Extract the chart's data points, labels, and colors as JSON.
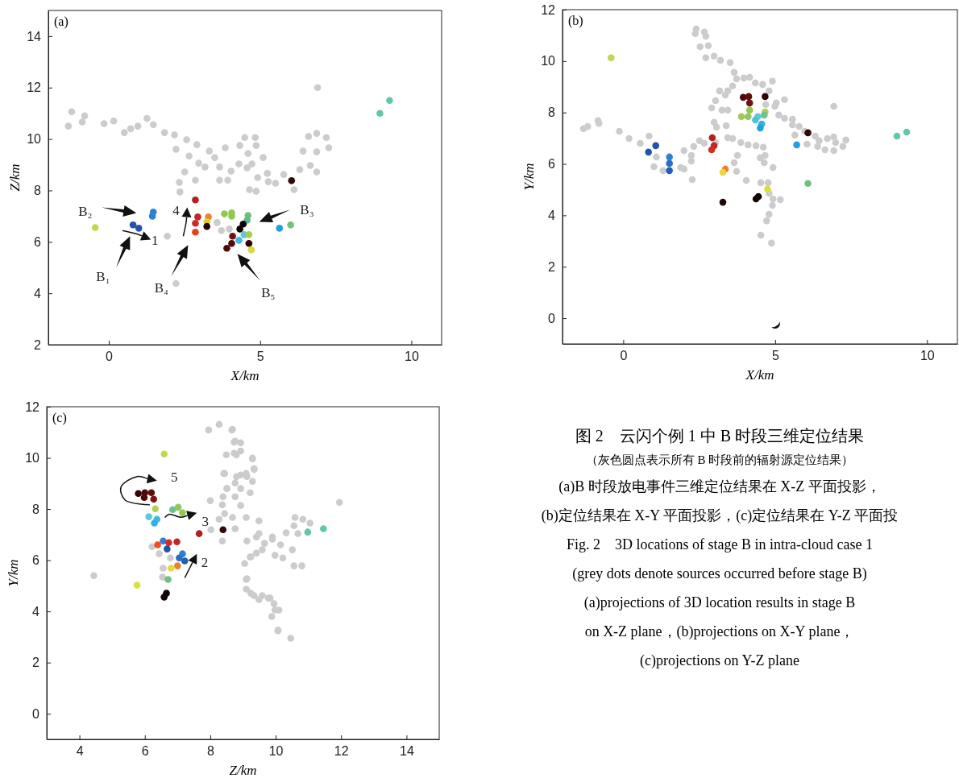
{
  "chart_data": [
    {
      "type": "scatter",
      "title": "(a)",
      "xlabel": "X/km",
      "ylabel": "Z/km",
      "xlim": [
        -2,
        11
      ],
      "ylim": [
        2,
        15
      ],
      "xticks": [
        0,
        5,
        10
      ],
      "yticks": [
        2,
        4,
        6,
        8,
        10,
        12,
        14
      ],
      "marker": "circle",
      "annotations": [
        "B₂",
        "B₁",
        "B₄",
        "B₅",
        "B₃",
        "1",
        "4"
      ],
      "series": [
        {
          "type": "scatter",
          "color": "#cccccc",
          "x": [
            -1.34,
            -1.23,
            -0.88,
            -0.8,
            -0.16,
            0.16,
            0.51,
            0.72,
            0.96,
            1.26,
            1.47,
            1.84,
            2.17,
            2.22,
            2.57,
            2.91,
            2.65,
            2.51,
            2.33,
            2.35,
            2.86,
            2.97,
            3.32,
            3.5,
            3.18,
            3.66,
            3.85,
            4.04,
            3.66,
            3.93,
            4.3,
            4.33,
            4.49,
            4.6,
            4.84,
            4.87,
            4.73,
            4.57,
            5.1,
            4.92,
            5.24,
            5.27,
            4.65,
            4.87,
            5.51,
            5.78,
            6.12,
            6.31,
            6.42,
            6.6,
            6.66,
            6.87,
            6.87,
            6.87,
            7.19,
            7.27,
            6.9,
            3.58,
            3.72,
            3.98,
            1.93,
            2.22
          ],
          "values": [
            10.5,
            11.06,
            10.66,
            10.9,
            10.6,
            10.7,
            10.25,
            10.4,
            10.5,
            10.8,
            10.56,
            10.25,
            10.16,
            9.6,
            9.97,
            9.78,
            9.34,
            8.72,
            8.31,
            7.94,
            8.4,
            9.06,
            9.53,
            9.28,
            8.91,
            8.91,
            9.66,
            8.75,
            8.4,
            8.4,
            9.03,
            9.75,
            10.06,
            9.44,
            10.06,
            9.75,
            9.03,
            8.88,
            9.28,
            8.5,
            8.66,
            8.34,
            8.03,
            7.97,
            8.28,
            8.62,
            8.03,
            8.81,
            9.53,
            10.1,
            8.97,
            10.22,
            9.5,
            8.72,
            10.06,
            9.66,
            12.0,
            6.75,
            6.44,
            6.5,
            6.22,
            4.38
          ]
        },
        {
          "type": "scatter",
          "x": [
            -0.45,
            0.8,
            0.99,
            1.47,
            1.44,
            2.86,
            2.94,
            2.86,
            2.86,
            3.29,
            3.24,
            3.24,
            3.82,
            4.06,
            4.06,
            4.6,
            4.57,
            4.44,
            4.33,
            4.47,
            4.3,
            4.63,
            4.09,
            4.06,
            3.9,
            4.63,
            4.71,
            5.64,
            6.01,
            6.04,
            8.96,
            9.28
          ],
          "values": [
            6.56,
            6.66,
            6.53,
            7.16,
            7.0,
            7.63,
            6.97,
            6.72,
            6.38,
            6.97,
            6.78,
            6.6,
            7.09,
            7.0,
            7.13,
            7.03,
            6.84,
            6.69,
            6.5,
            6.28,
            6.06,
            6.28,
            6.22,
            5.94,
            5.75,
            5.94,
            5.69,
            6.53,
            6.66,
            8.38,
            11.0,
            11.5
          ],
          "colors": [
            "#c0d850",
            "#2155a8",
            "#2155a8",
            "#2e80d0",
            "#2e80d0",
            "#b22020",
            "#c82424",
            "#d02828",
            "#e84020",
            "#f08030",
            "#e0d030",
            "#200808",
            "#90c850",
            "#90c850",
            "#90c850",
            "#70c070",
            "#60b890",
            "#100404",
            "#100404",
            "#60c8d8",
            "#40b8e0",
            "#a8d050",
            "#701010",
            "#500808",
            "#500808",
            "#300404",
            "#d8d840",
            "#20a0e0",
            "#70c080",
            "#300808",
            "#60c8a8",
            "#60c8a8"
          ]
        }
      ]
    },
    {
      "type": "scatter",
      "title": "(b)",
      "xlabel": "X/km",
      "ylabel": "Y/km",
      "xlim": [
        -2,
        11
      ],
      "ylim": [
        -1,
        12
      ],
      "xticks": [
        0,
        5,
        10
      ],
      "yticks": [
        0,
        2,
        4,
        6,
        8,
        10,
        12
      ],
      "marker": "circle",
      "series": [
        {
          "type": "scatter",
          "color": "#cccccc",
          "x": [
            2.4,
            2.37,
            2.67,
            2.72,
            2.53,
            2.8,
            2.72,
            2.99,
            3.2,
            3.52,
            3.65,
            3.73,
            3.97,
            4.16,
            4.35,
            4.59,
            4.91,
            4.8,
            3.6,
            3.44,
            3.17,
            3.36,
            3.04,
            2.91,
            3.25,
            3.44,
            4.69,
            5.04,
            5.31,
            4.99,
            6.93,
            5.12,
            5.31,
            5.57,
            5.57,
            5.79,
            5.97,
            6.32,
            6.45,
            6.72,
            6.93,
            6.99,
            7.33,
            7.23,
            6.93,
            6.64,
            6.4,
            6.05,
            5.65,
            -1.31,
            -1.17,
            -0.83,
            -0.8,
            -0.13,
            0.19,
            0.56,
            0.85,
            1.09,
            1.01,
            1.31,
            1.89,
            2.0,
            2.27,
            2.24,
            2.24,
            2.0,
            2.32,
            2.51,
            2.67,
            3.04,
            2.99,
            3.07,
            3.39,
            3.44,
            3.6,
            3.87,
            4.11,
            4.37,
            4.61,
            3.76,
            3.65,
            3.73,
            4.05,
            4.51,
            4.67,
            4.64,
            4.93,
            4.53,
            4.77,
            4.8,
            4.93,
            5.17,
            4.91,
            4.8,
            4.72,
            4.53,
            4.88
          ],
          "values": [
            11.25,
            11.07,
            11.13,
            10.97,
            10.56,
            10.6,
            10.13,
            10.19,
            10.03,
            9.94,
            9.56,
            9.31,
            9.34,
            9.37,
            9.15,
            9.09,
            9.22,
            8.84,
            9.03,
            8.84,
            8.84,
            8.68,
            8.46,
            8.18,
            8.09,
            8.09,
            8.31,
            8.37,
            8.5,
            8.24,
            8.24,
            7.9,
            7.77,
            7.74,
            7.52,
            7.46,
            7.27,
            7.08,
            6.9,
            6.99,
            7.05,
            6.83,
            6.93,
            6.68,
            6.52,
            6.55,
            6.68,
            6.77,
            7.12,
            7.37,
            7.46,
            7.68,
            7.58,
            7.27,
            6.99,
            6.8,
            7.08,
            6.27,
            5.89,
            5.74,
            5.86,
            5.8,
            5.39,
            6.11,
            6.33,
            6.52,
            6.68,
            6.9,
            6.8,
            6.83,
            7.62,
            7.43,
            7.49,
            7.02,
            6.99,
            6.83,
            6.74,
            6.71,
            6.65,
            6.33,
            6.05,
            5.71,
            5.36,
            6.24,
            6.33,
            6.05,
            5.86,
            5.27,
            5.27,
            4.86,
            4.64,
            4.61,
            4.39,
            4.04,
            3.79,
            3.23,
            2.92
          ]
        },
        {
          "type": "scatter",
          "x": [
            -0.4,
            3.95,
            4.13,
            4.16,
            4.67,
            4.16,
            3.89,
            4.11,
            4.67,
            4.64,
            4.43,
            4.35,
            4.56,
            4.51,
            6.08,
            9.01,
            9.33,
            5.71,
            1.07,
            0.83,
            1.52,
            1.52,
            1.52,
            2.93,
            2.99,
            2.91,
            3.36,
            3.28,
            4.75,
            6.08,
            4.45,
            4.37,
            3.28
          ],
          "values": [
            10.13,
            8.59,
            8.62,
            8.37,
            8.62,
            8.09,
            7.84,
            7.84,
            8.02,
            7.9,
            7.84,
            7.71,
            7.55,
            7.4,
            7.21,
            7.08,
            7.24,
            6.74,
            6.71,
            6.46,
            6.27,
            6.02,
            5.74,
            7.02,
            6.71,
            6.55,
            5.8,
            5.67,
            5.02,
            5.24,
            4.73,
            4.64,
            4.51
          ],
          "colors": [
            "#c0d850",
            "#500808",
            "#600c0c",
            "#701010",
            "#300404",
            "#90c850",
            "#a0c850",
            "#90c860",
            "#b0d050",
            "#70c090",
            "#60c8d8",
            "#50c0e0",
            "#30b0e8",
            "#20a0e0",
            "#300808",
            "#60c8a8",
            "#60c8a8",
            "#20a0e0",
            "#2155a8",
            "#2155a8",
            "#2e80d0",
            "#2870c0",
            "#2060b0",
            "#b02020",
            "#c02828",
            "#d03020",
            "#f08030",
            "#e8d840",
            "#d8e040",
            "#70c080",
            "#100404",
            "#100404",
            "#200808"
          ]
        }
      ]
    },
    {
      "type": "scatter",
      "title": "(c)",
      "xlabel": "Z/km",
      "ylabel": "Y/km",
      "xlim": [
        3,
        15
      ],
      "ylim": [
        -1,
        12
      ],
      "xticks": [
        4,
        6,
        8,
        10,
        12,
        14
      ],
      "yticks": [
        0,
        2,
        4,
        6,
        8,
        10,
        12
      ],
      "marker": "circle",
      "annotations": [
        "5",
        "3",
        "2"
      ],
      "series": [
        {
          "type": "scatter",
          "color": "#cccccc",
          "x": [
            7.95,
            8.27,
            8.66,
            8.76,
            8.73,
            8.93,
            9.29,
            9.34,
            8.93,
            9.12,
            8.76,
            8.44,
            8.51,
            8.39,
            8.76,
            8.0,
            8.37,
            8.93,
            8.44,
            8.27,
            9.1,
            9.49,
            8.76,
            8.37,
            9.12,
            9.41,
            9.9,
            10.15,
            9.59,
            9.24,
            9.05,
            9.1,
            9.24,
            9.59,
            9.83,
            9.98,
            10.07,
            6.22,
            6.44,
            6.78,
            6.56,
            6.54,
            4.44,
            8.68,
            8.73,
            8.93,
            8.49,
            8.8,
            9.29,
            9.34,
            8.41,
            8.8,
            9.1,
            9.29,
            8.51,
            8.93,
            9.22,
            11.95,
            10.59,
            10.83,
            11.05,
            10.56,
            10.68,
            10.32,
            9.49,
            9.9,
            9.66,
            10.51,
            10.22,
            9.98,
            9.41,
            9.22,
            10.56,
            10.8,
            9.12,
            9.1,
            9.34,
            9.49,
            9.78,
            9.95,
            10.1,
            9.88,
            10.07,
            10.46,
            8.68,
            8.02
          ],
          "values": [
            11.09,
            11.31,
            11.09,
            10.65,
            10.18,
            10.27,
            9.99,
            9.58,
            9.33,
            9.27,
            9.02,
            9.39,
            8.8,
            8.48,
            8.48,
            8.33,
            8.17,
            8.14,
            7.82,
            7.6,
            7.67,
            7.54,
            7.23,
            6.75,
            6.75,
            6.91,
            6.91,
            6.6,
            6.41,
            6.13,
            5.87,
            5.25,
            4.71,
            4.62,
            4.52,
            4.05,
            3.27,
            6.53,
            6.25,
            6.09,
            5.69,
            5.34,
            5.4,
            11.12,
            10.62,
            10.59,
            10.12,
            10.12,
            9.96,
            9.55,
            9.39,
            9.27,
            9.39,
            9.08,
            8.8,
            8.8,
            8.64,
            8.26,
            7.67,
            7.6,
            7.45,
            7.35,
            7.04,
            7.07,
            7.04,
            6.82,
            6.66,
            6.41,
            6.09,
            6.19,
            6.28,
            6.13,
            5.78,
            5.78,
            5.28,
            4.87,
            4.62,
            4.46,
            4.52,
            4.3,
            4.05,
            3.8,
            3.24,
            2.95,
            7.67,
            7.19
          ]
        },
        {
          "type": "scatter",
          "x": [
            6.59,
            5.8,
            5.98,
            6.0,
            6.2,
            6.27,
            6.32,
            6.85,
            7.02,
            7.15,
            6.12,
            6.37,
            6.29,
            7.66,
            8.39,
            6.56,
            6.73,
            6.98,
            6.68,
            6.39,
            7.15,
            7.05,
            7.22,
            7.0,
            6.8,
            6.71,
            5.76,
            6.66,
            6.59,
            10.98,
            11.46
          ],
          "values": [
            10.15,
            8.61,
            8.45,
            8.64,
            8.64,
            8.39,
            8.01,
            7.98,
            8.07,
            7.85,
            7.7,
            7.6,
            7.45,
            7.04,
            7.19,
            6.75,
            6.69,
            6.72,
            6.44,
            6.6,
            6.25,
            6.09,
            5.97,
            5.78,
            5.69,
            5.25,
            5.03,
            4.71,
            4.56,
            7.1,
            7.23
          ],
          "colors": [
            "#c0d850",
            "#300404",
            "#500808",
            "#500808",
            "#600c0c",
            "#801414",
            "#b0d050",
            "#70c090",
            "#90c860",
            "#90c850",
            "#60c8d8",
            "#40b8e0",
            "#30b0e8",
            "#b02020",
            "#300808",
            "#2e80d0",
            "#d82828",
            "#c02828",
            "#2155a8",
            "#f05020",
            "#2e80d0",
            "#2870c0",
            "#2060b0",
            "#f08030",
            "#e8d840",
            "#70c080",
            "#d8e040",
            "#100404",
            "#100404",
            "#60c8a8",
            "#60c8a8"
          ]
        }
      ]
    },
    {
      "type": "other",
      "title": "图 2　云闪个例 1 中 B 时段三维定位结果",
      "subtitle": "（灰色圆点表示所有 B 时段前的辐射源定位结果）",
      "annotations": [
        "(a)B 时段放电事件三维定位结果在 X-Z 平面投影，",
        "(b)定位结果在 X-Y 平面投影，(c)定位结果在 Y-Z 平面投",
        "Fig. 2　3D locations of stage B in intra-cloud case 1",
        "(grey dots denote sources occurred before stage B)",
        "(a)projections of 3D location results in stage B",
        "on X-Z plane，(b)projections on X-Y plane，",
        "(c)projections on Y-Z plane"
      ]
    }
  ]
}
